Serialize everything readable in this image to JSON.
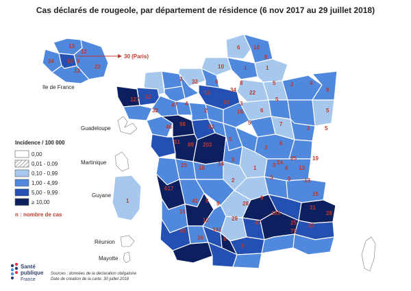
{
  "title": "Cas déclarés de rougeole, par département de résidence (6 nov 2017 au 29 juillet 2018)",
  "colors": {
    "c0": "#ffffff",
    "c1": "#e6eef7",
    "c2": "#a6c8ec",
    "c3": "#4f88dc",
    "c4": "#2450b3",
    "c5": "#0c1f5e",
    "number": "#c0392b"
  },
  "legend": {
    "title": "Incidence / 100 000",
    "classes": [
      "0,00",
      "0,01 - 0,09",
      "0,10 - 0,99",
      "1,00 - 4,99",
      "5,00 - 9,99",
      "≥ 10,00"
    ],
    "note": "n : nombre de cas"
  },
  "labels": {
    "ile_de_france": "Ile de France",
    "paris": "30 (Paris)",
    "guadeloupe": "Guadeloupe",
    "martinique": "Martinique",
    "guyane": "Guyane",
    "reunion": "Réunion",
    "mayotte": "Mayotte"
  },
  "idf_counts": [
    "13",
    "12",
    "34",
    "10",
    "8",
    "13",
    "22"
  ],
  "guyane_count": "1",
  "dept_counts": [
    "6",
    "18",
    "10",
    "1",
    "8",
    "1",
    "4",
    "2",
    "32",
    "6",
    "13",
    "34",
    "8",
    "22",
    "9",
    "5",
    "2",
    "127",
    "52",
    "47",
    "4",
    "2",
    "10",
    "3",
    "5",
    "5",
    "32",
    "16",
    "5",
    "6",
    "5",
    "46",
    "98",
    "52",
    "7",
    "2",
    "51",
    "89",
    "203",
    "5",
    "3",
    "6",
    "25",
    "18",
    "14",
    "5",
    "19",
    "13",
    "6",
    "2",
    "1",
    "3",
    "24",
    "25",
    "9",
    "13",
    "3",
    "617",
    "15",
    "41",
    "8",
    "9",
    "28",
    "9",
    "183",
    "31",
    "28",
    "19",
    "12",
    "29",
    "47",
    "25",
    "75",
    "23",
    "40",
    "141",
    "36",
    "6",
    "9"
  ],
  "footer": {
    "sources": "Sources : données de la déclaration obligatoire",
    "date": "Date de création de la carte: 30 juillet 2018"
  },
  "logo": {
    "line1": "Santé",
    "line2": "publique",
    "line3": "France"
  }
}
